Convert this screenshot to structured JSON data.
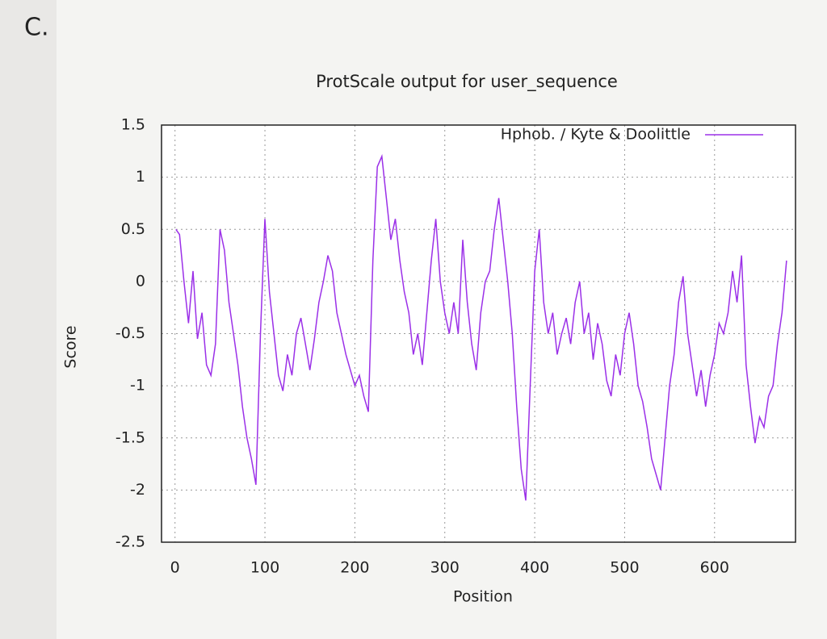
{
  "label": "C.",
  "chart_data": {
    "type": "line",
    "title": "ProtScale output for user_sequence",
    "xlabel": "Position",
    "ylabel": "Score",
    "x": [
      1,
      5,
      10,
      15,
      20,
      25,
      30,
      35,
      40,
      45,
      50,
      55,
      60,
      65,
      70,
      75,
      80,
      85,
      90,
      95,
      100,
      105,
      110,
      115,
      120,
      125,
      130,
      135,
      140,
      145,
      150,
      155,
      160,
      165,
      170,
      175,
      180,
      185,
      190,
      195,
      200,
      205,
      210,
      215,
      220,
      225,
      230,
      235,
      240,
      245,
      250,
      255,
      260,
      265,
      270,
      275,
      280,
      285,
      290,
      295,
      300,
      305,
      310,
      315,
      320,
      325,
      330,
      335,
      340,
      345,
      350,
      355,
      360,
      365,
      370,
      375,
      380,
      385,
      390,
      395,
      400,
      405,
      410,
      415,
      420,
      425,
      430,
      435,
      440,
      445,
      450,
      455,
      460,
      465,
      470,
      475,
      480,
      485,
      490,
      495,
      500,
      505,
      510,
      515,
      520,
      525,
      530,
      535,
      540,
      545,
      550,
      555,
      560,
      565,
      570,
      575,
      580,
      585,
      590,
      595,
      600,
      605,
      610,
      615,
      620,
      625,
      630,
      635,
      640,
      645,
      650,
      655,
      660,
      665,
      670,
      675,
      680
    ],
    "series": [
      {
        "name": "Hphob. / Kyte & Doolittle",
        "color": "#9b30e8",
        "values": [
          0.5,
          0.45,
          0.0,
          -0.4,
          0.1,
          -0.55,
          -0.3,
          -0.8,
          -0.9,
          -0.6,
          0.5,
          0.3,
          -0.2,
          -0.5,
          -0.8,
          -1.2,
          -1.5,
          -1.7,
          -1.95,
          -0.5,
          0.6,
          -0.1,
          -0.5,
          -0.9,
          -1.05,
          -0.7,
          -0.9,
          -0.5,
          -0.35,
          -0.6,
          -0.85,
          -0.55,
          -0.2,
          0.0,
          0.25,
          0.1,
          -0.3,
          -0.5,
          -0.7,
          -0.85,
          -1.0,
          -0.9,
          -1.1,
          -1.25,
          0.2,
          1.1,
          1.2,
          0.8,
          0.4,
          0.6,
          0.2,
          -0.1,
          -0.3,
          -0.7,
          -0.5,
          -0.8,
          -0.3,
          0.2,
          0.6,
          0.0,
          -0.3,
          -0.5,
          -0.2,
          -0.5,
          0.4,
          -0.2,
          -0.6,
          -0.85,
          -0.3,
          0.0,
          0.1,
          0.5,
          0.8,
          0.4,
          0.0,
          -0.5,
          -1.2,
          -1.8,
          -2.1,
          -1.0,
          0.1,
          0.5,
          -0.2,
          -0.5,
          -0.3,
          -0.7,
          -0.5,
          -0.35,
          -0.6,
          -0.2,
          0.0,
          -0.5,
          -0.3,
          -0.75,
          -0.4,
          -0.6,
          -0.95,
          -1.1,
          -0.7,
          -0.9,
          -0.5,
          -0.3,
          -0.6,
          -1.0,
          -1.15,
          -1.4,
          -1.7,
          -1.85,
          -2.0,
          -1.5,
          -1.0,
          -0.7,
          -0.2,
          0.05,
          -0.5,
          -0.8,
          -1.1,
          -0.85,
          -1.2,
          -0.9,
          -0.7,
          -0.4,
          -0.5,
          -0.3,
          0.1,
          -0.2,
          0.25,
          -0.8,
          -1.2,
          -1.55,
          -1.3,
          -1.4,
          -1.1,
          -1.0,
          -0.6,
          -0.3,
          0.2
        ]
      }
    ],
    "xlim": [
      -15,
      690
    ],
    "ylim": [
      -2.5,
      1.5
    ],
    "xticks": [
      0,
      100,
      200,
      300,
      400,
      500,
      600
    ],
    "yticks": [
      -2.5,
      -2,
      -1.5,
      -1,
      -0.5,
      0,
      0.5,
      1,
      1.5
    ],
    "grid": true,
    "legend": "upper right"
  }
}
